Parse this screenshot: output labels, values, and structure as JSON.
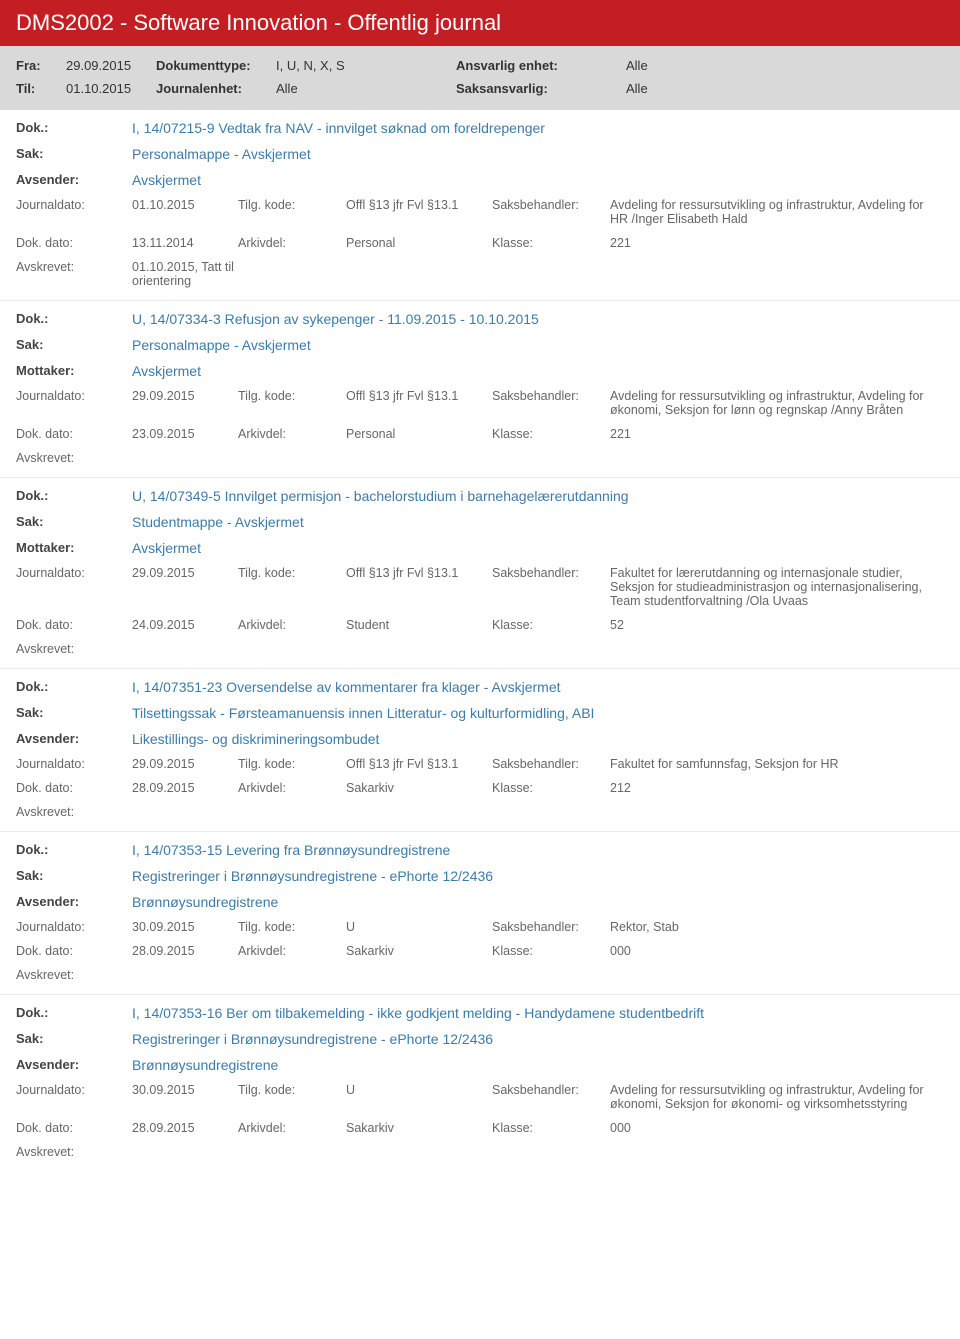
{
  "header": {
    "title": "DMS2002 - Software Innovation - Offentlig journal"
  },
  "filter": {
    "fra_label": "Fra:",
    "fra": "29.09.2015",
    "til_label": "Til:",
    "til": "01.10.2015",
    "doktype_label": "Dokumenttype:",
    "doktype": "I, U, N, X, S",
    "jenhet_label": "Journalenhet:",
    "jenhet": "Alle",
    "ansvarlig_label": "Ansvarlig enhet:",
    "ansvarlig": "Alle",
    "saksansv_label": "Saksansvarlig:",
    "saksansv": "Alle"
  },
  "labels": {
    "dok": "Dok.:",
    "sak": "Sak:",
    "avsender": "Avsender:",
    "mottaker": "Mottaker:",
    "journaldato": "Journaldato:",
    "tilgkode": "Tilg. kode:",
    "saksbehandler": "Saksbehandler:",
    "dokdato": "Dok. dato:",
    "arkivdel": "Arkivdel:",
    "klasse": "Klasse:",
    "avskrevet": "Avskrevet:"
  },
  "entries": [
    {
      "dok": "I, 14/07215-9 Vedtak fra NAV - innvilget søknad om foreldrepenger",
      "sak": "Personalmappe - Avskjermet",
      "party_label": "Avsender:",
      "party": "Avskjermet",
      "journaldato": "01.10.2015",
      "tilgkode": "Offl §13 jfr Fvl §13.1",
      "saksbehandler": "Avdeling for ressursutvikling og infrastruktur, Avdeling for HR /Inger Elisabeth Hald",
      "dokdato": "13.11.2014",
      "arkivdel": "Personal",
      "klasse": "221",
      "avskrevet": "01.10.2015, Tatt til orientering"
    },
    {
      "dok": "U, 14/07334-3 Refusjon av sykepenger - 11.09.2015 - 10.10.2015",
      "sak": "Personalmappe - Avskjermet",
      "party_label": "Mottaker:",
      "party": "Avskjermet",
      "journaldato": "29.09.2015",
      "tilgkode": "Offl §13 jfr Fvl §13.1",
      "saksbehandler": "Avdeling for ressursutvikling og infrastruktur, Avdeling for økonomi, Seksjon for lønn og regnskap /Anny Bråten",
      "dokdato": "23.09.2015",
      "arkivdel": "Personal",
      "klasse": "221",
      "avskrevet": ""
    },
    {
      "dok": "U, 14/07349-5 Innvilget permisjon - bachelorstudium i barnehagelærerutdanning",
      "sak": "Studentmappe - Avskjermet",
      "party_label": "Mottaker:",
      "party": "Avskjermet",
      "journaldato": "29.09.2015",
      "tilgkode": "Offl §13 jfr Fvl §13.1",
      "saksbehandler": "Fakultet for lærerutdanning og internasjonale studier, Seksjon for studieadministrasjon og internasjonalisering, Team studentforvaltning /Ola Uvaas",
      "dokdato": "24.09.2015",
      "arkivdel": "Student",
      "klasse": "52",
      "avskrevet": ""
    },
    {
      "dok": "I, 14/07351-23 Oversendelse av kommentarer fra klager - Avskjermet",
      "sak": "Tilsettingssak - Førsteamanuensis innen Litteratur- og kulturformidling, ABI",
      "party_label": "Avsender:",
      "party": "Likestillings- og diskrimineringsombudet",
      "journaldato": "29.09.2015",
      "tilgkode": "Offl §13 jfr Fvl §13.1",
      "saksbehandler": "Fakultet for samfunnsfag, Seksjon for HR",
      "dokdato": "28.09.2015",
      "arkivdel": "Sakarkiv",
      "klasse": "212",
      "avskrevet": ""
    },
    {
      "dok": "I, 14/07353-15 Levering fra Brønnøysundregistrene",
      "sak": "Registreringer i Brønnøysundregistrene - ePhorte 12/2436",
      "party_label": "Avsender:",
      "party": "Brønnøysundregistrene",
      "journaldato": "30.09.2015",
      "tilgkode": "U",
      "saksbehandler": "Rektor, Stab",
      "dokdato": "28.09.2015",
      "arkivdel": "Sakarkiv",
      "klasse": "000",
      "avskrevet": ""
    },
    {
      "dok": "I, 14/07353-16 Ber om tilbakemelding - ikke godkjent melding - Handydamene studentbedrift",
      "sak": "Registreringer i Brønnøysundregistrene - ePhorte 12/2436",
      "party_label": "Avsender:",
      "party": "Brønnøysundregistrene",
      "journaldato": "30.09.2015",
      "tilgkode": "U",
      "saksbehandler": "Avdeling for ressursutvikling og infrastruktur, Avdeling for økonomi, Seksjon for økonomi- og virksomhetsstyring",
      "dokdato": "28.09.2015",
      "arkivdel": "Sakarkiv",
      "klasse": "000",
      "avskrevet": ""
    }
  ]
}
